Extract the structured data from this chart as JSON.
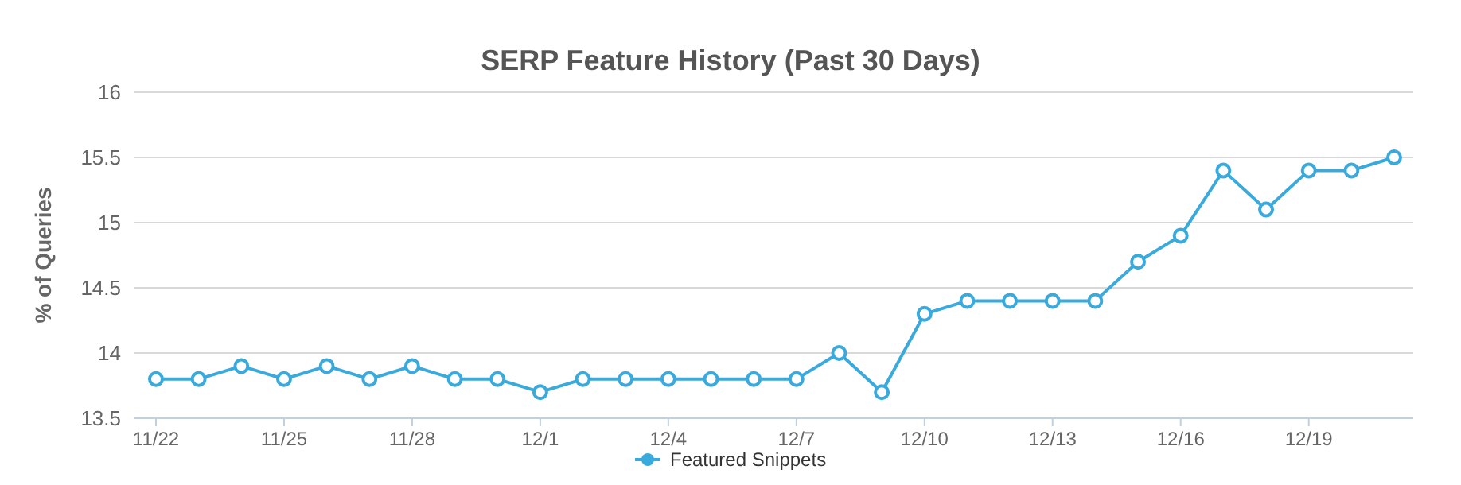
{
  "chart_data": {
    "type": "line",
    "title": "SERP Feature History (Past 30 Days)",
    "ylabel": "% of Queries",
    "categories": [
      "11/22",
      null,
      null,
      "11/25",
      null,
      null,
      "11/28",
      null,
      null,
      "12/1",
      null,
      null,
      "12/4",
      null,
      null,
      "12/7",
      null,
      null,
      "12/10",
      null,
      null,
      "12/13",
      null,
      null,
      "12/16",
      null,
      null,
      "12/19",
      null,
      null
    ],
    "series": [
      {
        "name": "Featured Snippets",
        "color": "#3aa9dc",
        "values": [
          13.8,
          13.8,
          13.9,
          13.8,
          13.9,
          13.8,
          13.9,
          13.8,
          13.8,
          13.7,
          13.8,
          13.8,
          13.8,
          13.8,
          13.8,
          13.8,
          14.0,
          13.7,
          14.3,
          14.4,
          14.4,
          14.4,
          14.4,
          14.7,
          14.9,
          15.4,
          15.1,
          15.4,
          15.4,
          15.5
        ]
      }
    ],
    "ylim": [
      13.5,
      16
    ],
    "yticks": [
      13.5,
      14,
      14.5,
      15,
      15.5,
      16
    ],
    "grid": "y",
    "legend": "bottom",
    "marker": "circle",
    "line_style": "solid"
  }
}
